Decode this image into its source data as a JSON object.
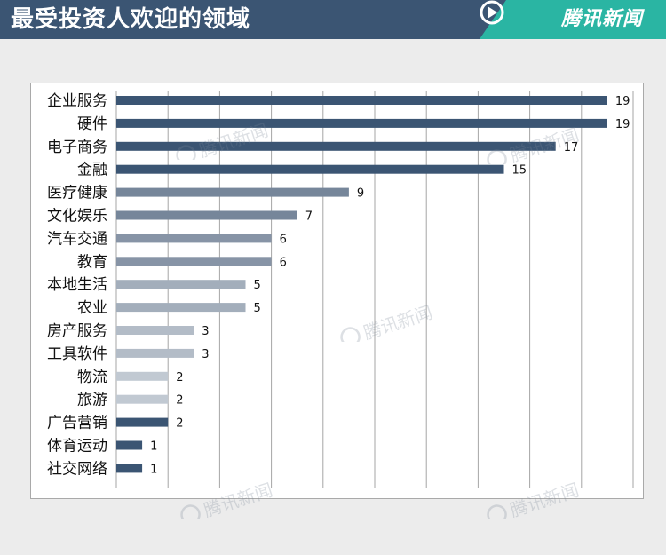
{
  "header": {
    "title": "最受投资人欢迎的领域",
    "brand": "腾讯新闻",
    "brand_logo": "tencent-news-logo",
    "colors": {
      "banner": "#3b5573",
      "brand_band": "#2ab5a3"
    }
  },
  "chart_data": {
    "type": "bar",
    "orientation": "horizontal",
    "title": "最受投资人欢迎的领域",
    "xlabel": "",
    "ylabel": "",
    "xlim": [
      0,
      20
    ],
    "grid": true,
    "legend": "none",
    "data_labels": true,
    "categories": [
      "企业服务",
      "硬件",
      "电子商务",
      "金融",
      "医疗健康",
      "文化娱乐",
      "汽车交通",
      "教育",
      "本地生活",
      "农业",
      "房产服务",
      "工具软件",
      "物流",
      "旅游",
      "广告营销",
      "体育运动",
      "社交网络"
    ],
    "values": [
      19,
      19,
      17,
      15,
      9,
      7,
      6,
      6,
      5,
      5,
      3,
      3,
      2,
      2,
      2,
      1,
      1
    ],
    "colors": [
      "#3b5573",
      "#3b5573",
      "#3b5573",
      "#3b5573",
      "#76869a",
      "#76869a",
      "#8794a6",
      "#8794a6",
      "#a3aebb",
      "#a3aebb",
      "#b3bcc7",
      "#b3bcc7",
      "#c1c9d2",
      "#c1c9d2",
      "#3b5573",
      "#3b5573",
      "#3b5573"
    ]
  },
  "watermarks": {
    "text": "腾讯新闻",
    "icon": "tencent-news-logo"
  }
}
